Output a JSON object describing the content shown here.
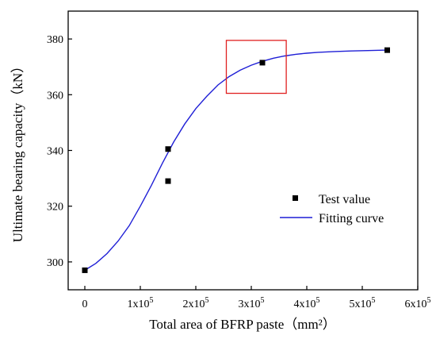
{
  "chart_data": {
    "type": "scatter",
    "title": "",
    "xlabel": "Total area of BFRP paste（mm²）",
    "ylabel": "Ultimate bearing capacity（kN）",
    "xlim": [
      -30000,
      600000
    ],
    "ylim": [
      290,
      390
    ],
    "x_ticks": [
      0,
      100000,
      200000,
      300000,
      400000,
      500000,
      600000
    ],
    "x_tick_labels": [
      {
        "mantissa": "0",
        "exp": ""
      },
      {
        "mantissa": "1x10",
        "exp": "5"
      },
      {
        "mantissa": "2x10",
        "exp": "5"
      },
      {
        "mantissa": "3x10",
        "exp": "5"
      },
      {
        "mantissa": "4x10",
        "exp": "5"
      },
      {
        "mantissa": "5x10",
        "exp": "5"
      },
      {
        "mantissa": "6x10",
        "exp": "5"
      }
    ],
    "y_ticks": [
      300,
      320,
      340,
      360,
      380
    ],
    "y_tick_labels": [
      "300",
      "320",
      "340",
      "360",
      "380"
    ],
    "series": [
      {
        "name": "Test value",
        "kind": "scatter",
        "color": "#000000",
        "marker": "square",
        "points": [
          {
            "x": 0,
            "y": 297
          },
          {
            "x": 150000,
            "y": 340.5
          },
          {
            "x": 150000,
            "y": 329
          },
          {
            "x": 320000,
            "y": 371.5
          },
          {
            "x": 545000,
            "y": 376
          }
        ]
      },
      {
        "name": "Fitting curve",
        "kind": "line",
        "color": "#1f1fd6",
        "points": [
          {
            "x": 0,
            "y": 297
          },
          {
            "x": 20000,
            "y": 299.5
          },
          {
            "x": 40000,
            "y": 303
          },
          {
            "x": 60000,
            "y": 307.5
          },
          {
            "x": 80000,
            "y": 313
          },
          {
            "x": 100000,
            "y": 320
          },
          {
            "x": 120000,
            "y": 327.5
          },
          {
            "x": 140000,
            "y": 335.5
          },
          {
            "x": 160000,
            "y": 343
          },
          {
            "x": 180000,
            "y": 349.5
          },
          {
            "x": 200000,
            "y": 355
          },
          {
            "x": 220000,
            "y": 359.5
          },
          {
            "x": 240000,
            "y": 363.5
          },
          {
            "x": 260000,
            "y": 366.5
          },
          {
            "x": 280000,
            "y": 368.8
          },
          {
            "x": 300000,
            "y": 370.6
          },
          {
            "x": 320000,
            "y": 372
          },
          {
            "x": 340000,
            "y": 373.1
          },
          {
            "x": 360000,
            "y": 373.9
          },
          {
            "x": 380000,
            "y": 374.5
          },
          {
            "x": 400000,
            "y": 374.9
          },
          {
            "x": 420000,
            "y": 375.2
          },
          {
            "x": 450000,
            "y": 375.5
          },
          {
            "x": 480000,
            "y": 375.7
          },
          {
            "x": 510000,
            "y": 375.85
          },
          {
            "x": 545000,
            "y": 376
          }
        ]
      }
    ],
    "highlight_box": {
      "x_range": [
        255000,
        363000
      ],
      "y_range": [
        360.5,
        379.5
      ],
      "color": "#e02020"
    },
    "legend": {
      "placement": "center-right"
    },
    "grid": false
  }
}
